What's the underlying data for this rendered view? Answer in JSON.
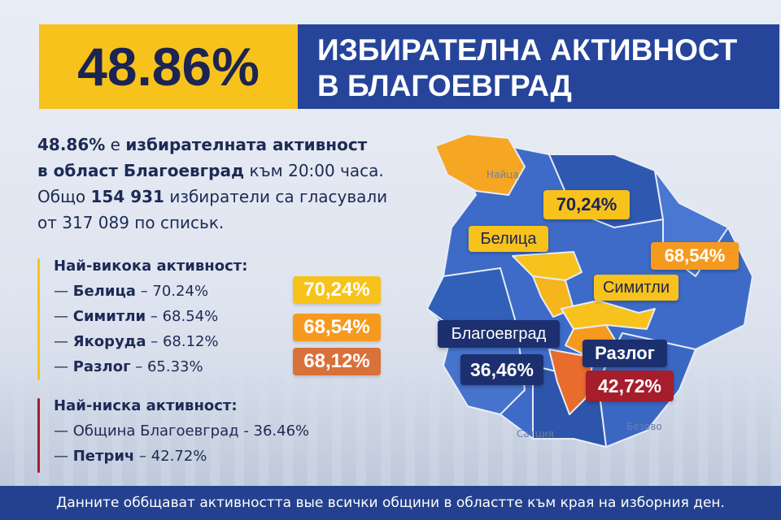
{
  "header": {
    "percent": "48.86%",
    "title_line1": "ИЗБИРАТЕЛНА АКТИВНОСТ",
    "title_line2": "В БЛАГОЕВГРАД"
  },
  "summary": {
    "line1_bold_a": "48.86%",
    "line1_rest": " е ",
    "line1_bold_b": "избирателната активност",
    "line2_bold": "в област Благоевград",
    "line2_rest": " към 20:00 часа.",
    "line3_a": "Общо ",
    "line3_bold": "154 931",
    "line3_b": " избиратели са гласували",
    "line4": "от 317 089 по списьк."
  },
  "highest": {
    "heading": "Най-викока активност:",
    "items": [
      {
        "name": "Белица",
        "value": "– 70.24%"
      },
      {
        "name": "Симитли",
        "value": "– 68.54%"
      },
      {
        "name": "Якоруда",
        "value": "– 68.12%"
      },
      {
        "name": "Разлог",
        "value": "– 65.33%"
      }
    ],
    "badges": [
      "70,24%",
      "68,54%",
      "68,12%"
    ]
  },
  "lowest": {
    "heading": "Най-ниска активност:",
    "items": [
      {
        "name": "Община Благоевград",
        "value": "- 36.46%"
      },
      {
        "name": "Петрич",
        "value": "– 42.72%"
      }
    ]
  },
  "map": {
    "labels": {
      "naitsa": "Найца",
      "belitsa": "Белица",
      "simitli": "Симитли",
      "blagoevgrad": "Благоевград",
      "razlog": "Разлог",
      "bezovo": "Безово",
      "satsiya": "Сатция"
    },
    "values": {
      "top": "70,24%",
      "right": "68,54%",
      "blagoevgrad": "36,46%",
      "razlog": "42,72%"
    }
  },
  "footer": "Данните оббщават активността вые всички общини в областте към края на изборния ден.",
  "colors": {
    "yellow": "#f7c21b",
    "orange": "#f59a1f",
    "burnt": "#d9713a",
    "navy": "#25449a",
    "dark_navy": "#1c2f6e",
    "red": "#a61d2c",
    "map_blue": "#3d6bc7"
  }
}
